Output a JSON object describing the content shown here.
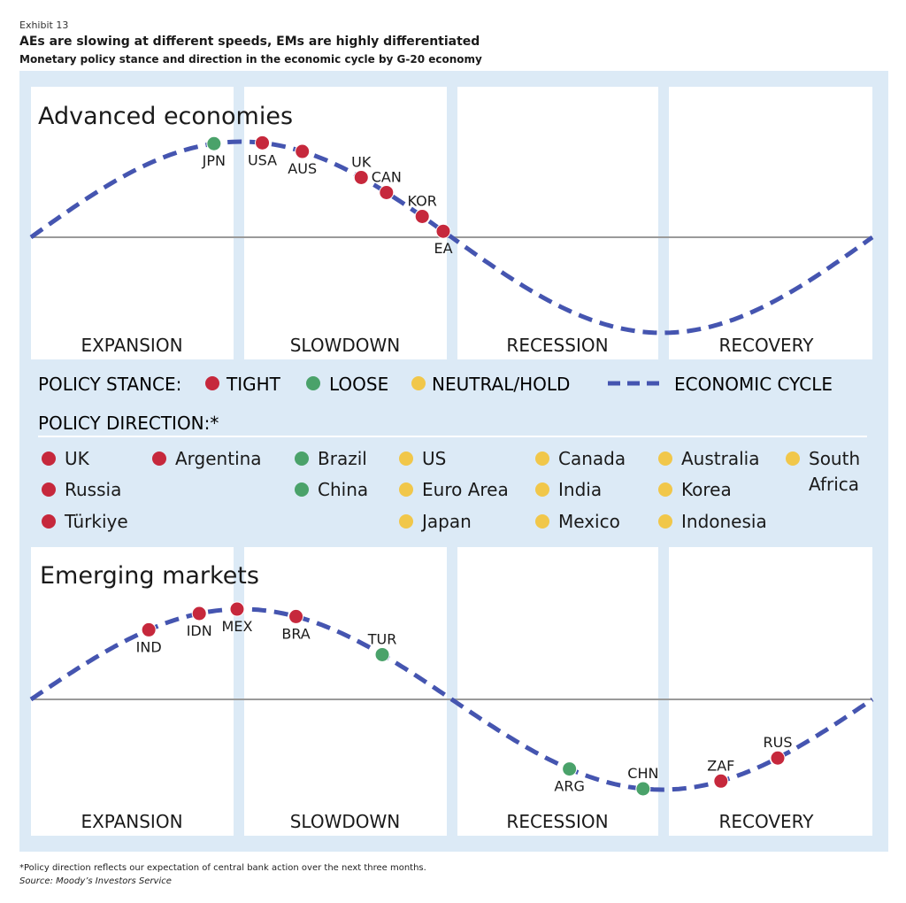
{
  "header": {
    "exhibit": "Exhibit 13",
    "title": "AEs are slowing at different speeds, EMs are highly differentiated",
    "subtitle": "Monetary policy stance and direction in the economic cycle by G-20 economy"
  },
  "colors": {
    "tight": "#c6283c",
    "loose": "#4aa26a",
    "neutral": "#f1c74a",
    "curve": "#4555b0",
    "background": "#dceaf6",
    "panel": "#ffffff"
  },
  "legend": {
    "stance_label": "POLICY STANCE:",
    "tight": "TIGHT",
    "loose": "LOOSE",
    "neutral": "NEUTRAL/HOLD",
    "cycle": "ECONOMIC CYCLE",
    "direction_label": "POLICY DIRECTION:*"
  },
  "direction_columns": [
    [
      {
        "name": "UK",
        "stance": "tight"
      },
      {
        "name": "Russia",
        "stance": "tight"
      },
      {
        "name": "Türkiye",
        "stance": "tight"
      }
    ],
    [
      {
        "name": "Argentina",
        "stance": "tight"
      }
    ],
    [
      {
        "name": "Brazil",
        "stance": "loose"
      },
      {
        "name": "China",
        "stance": "loose"
      }
    ],
    [
      {
        "name": "US",
        "stance": "neutral"
      },
      {
        "name": "Euro Area",
        "stance": "neutral"
      },
      {
        "name": "Japan",
        "stance": "neutral"
      }
    ],
    [
      {
        "name": "Canada",
        "stance": "neutral"
      },
      {
        "name": "India",
        "stance": "neutral"
      },
      {
        "name": "Mexico",
        "stance": "neutral"
      }
    ],
    [
      {
        "name": "Australia",
        "stance": "neutral"
      },
      {
        "name": "Korea",
        "stance": "neutral"
      },
      {
        "name": "Indonesia",
        "stance": "neutral"
      }
    ],
    [
      {
        "name": "South Africa",
        "stance": "neutral"
      }
    ]
  ],
  "chart_data": [
    {
      "type": "scatter",
      "title": "Advanced economies",
      "phases": [
        "EXPANSION",
        "SLOWDOWN",
        "RECESSION",
        "RECOVERY"
      ],
      "x_unit": "position in economic cycle (0–4 phases)",
      "points": [
        {
          "label": "JPN",
          "phase_pos": 0.87,
          "stance": "loose",
          "label_pos": "below"
        },
        {
          "label": "USA",
          "phase_pos": 1.1,
          "stance": "tight",
          "label_pos": "below"
        },
        {
          "label": "AUS",
          "phase_pos": 1.29,
          "stance": "tight",
          "label_pos": "below"
        },
        {
          "label": "UK",
          "phase_pos": 1.57,
          "stance": "tight",
          "label_pos": "above"
        },
        {
          "label": "CAN",
          "phase_pos": 1.69,
          "stance": "tight",
          "label_pos": "above"
        },
        {
          "label": "KOR",
          "phase_pos": 1.86,
          "stance": "tight",
          "label_pos": "above"
        },
        {
          "label": "EA",
          "phase_pos": 1.96,
          "stance": "tight",
          "label_pos": "below"
        }
      ]
    },
    {
      "type": "scatter",
      "title": "Emerging markets",
      "phases": [
        "EXPANSION",
        "SLOWDOWN",
        "RECESSION",
        "RECOVERY"
      ],
      "x_unit": "position in economic cycle (0–4 phases)",
      "points": [
        {
          "label": "IND",
          "phase_pos": 0.56,
          "stance": "tight",
          "label_pos": "below"
        },
        {
          "label": "IDN",
          "phase_pos": 0.8,
          "stance": "tight",
          "label_pos": "below"
        },
        {
          "label": "MEX",
          "phase_pos": 0.98,
          "stance": "tight",
          "label_pos": "below"
        },
        {
          "label": "BRA",
          "phase_pos": 1.26,
          "stance": "tight",
          "label_pos": "below"
        },
        {
          "label": "TUR",
          "phase_pos": 1.67,
          "stance": "loose",
          "label_pos": "above"
        },
        {
          "label": "ARG",
          "phase_pos": 2.56,
          "stance": "loose",
          "label_pos": "below"
        },
        {
          "label": "CHN",
          "phase_pos": 2.91,
          "stance": "loose",
          "label_pos": "above"
        },
        {
          "label": "ZAF",
          "phase_pos": 3.28,
          "stance": "tight",
          "label_pos": "above"
        },
        {
          "label": "RUS",
          "phase_pos": 3.55,
          "stance": "tight",
          "label_pos": "above"
        }
      ]
    }
  ],
  "footer": {
    "note": "*Policy direction reflects our expectation of central bank action over the next three months.",
    "source": "Source: Moody’s Investors Service"
  }
}
